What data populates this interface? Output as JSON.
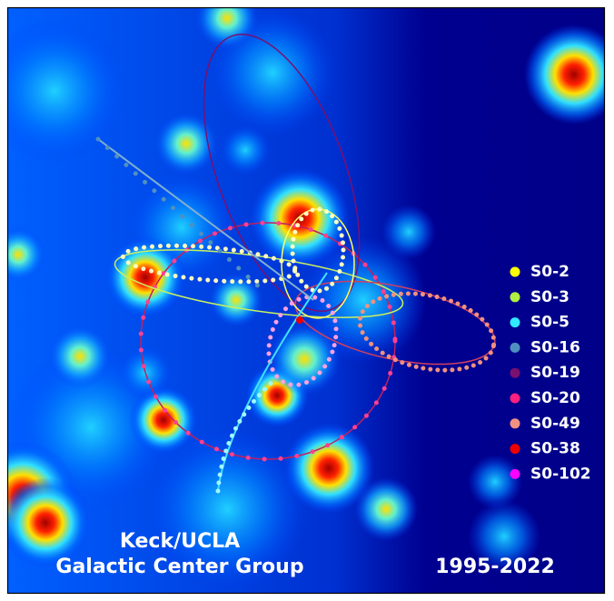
{
  "legend": [
    {
      "label": "S0-2",
      "color": "#ffff00"
    },
    {
      "label": "S0-3",
      "color": "#b0f040"
    },
    {
      "label": "S0-5",
      "color": "#30e8ff"
    },
    {
      "label": "S0-16",
      "color": "#5090c0"
    },
    {
      "label": "S0-19",
      "color": "#7a1070"
    },
    {
      "label": "S0-20",
      "color": "#ff2080"
    },
    {
      "label": "S0-49",
      "color": "#f09080"
    },
    {
      "label": "S0-38",
      "color": "#ee0000"
    },
    {
      "label": "S0-102",
      "color": "#ff00ff"
    }
  ],
  "credit": [
    "Keck/UCLA",
    "Galactic Center Group"
  ],
  "years": "1995-2022"
}
